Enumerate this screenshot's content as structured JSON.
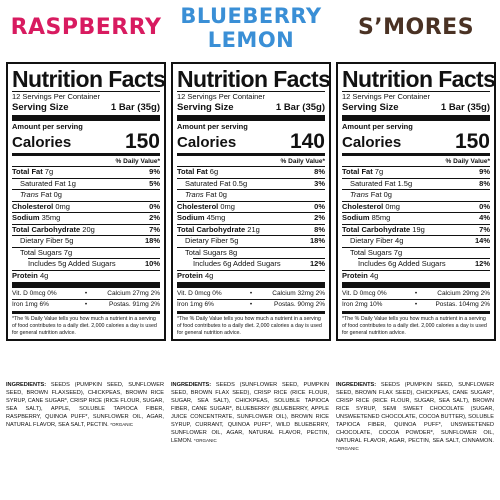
{
  "common": {
    "title": "Nutrition Facts",
    "servings": "12 Servings Per Container",
    "serving_size_label": "Serving Size",
    "serving_size_value": "1 Bar (35g)",
    "amount_per_serving": "Amount per serving",
    "calories_label": "Calories",
    "dv_header": "% Daily Value*",
    "footnote": "*The % Daily Value tells you how much a nutrient in a serving of food contributes to a daily diet. 2,000 calories a day is used for general nutrition advice.",
    "ingredients_label": "INGREDIENTS:"
  },
  "products": [
    {
      "flavor_lines": [
        "RASPBERRY"
      ],
      "color": "#d81b60",
      "calories": "150",
      "total_fat_label": "Total Fat",
      "total_fat": "7g",
      "total_fat_dv": "9%",
      "sat_fat_label": "Saturated Fat",
      "sat_fat": "1g",
      "sat_fat_dv": "5%",
      "trans_fat_label": "Trans",
      "trans_fat_suffix": "Fat 0g",
      "cholesterol_label": "Cholesterol",
      "cholesterol": "0mg",
      "cholesterol_dv": "0%",
      "sodium_label": "Sodium",
      "sodium": "35mg",
      "sodium_dv": "2%",
      "carb_label": "Total Carbohydrate",
      "carb": "20g",
      "carb_dv": "7%",
      "fiber_label": "Dietary Fiber",
      "fiber": "5g",
      "fiber_dv": "18%",
      "sugars": "Total Sugars 7g",
      "added_sugars": "Includes 5g Added Sugars",
      "added_sugars_dv": "10%",
      "protein_label": "Protein",
      "protein": "4g",
      "vit_d": "Vit. D 0mcg  0%",
      "calcium": "Calcium 27mg 2%",
      "iron": "Iron 1mg 6%",
      "potassium": "Postas. 91mg 2%",
      "ingredients": "SEEDS (PUMPKIN SEED, SUNFLOWER SEED, BROWN FLAXSEED), CHICKPEAS, BROWN RICE SYRUP, CANE SUGAR*, CRISP RICE (RICE FLOUR, SUGAR, SEA SALT), APPLE, SOLUBLE TAPIOCA FIBER, RASPBERRY, QUINOA PUFF*, SUNFLOWER OIL, AGAR, NATURAL FLAVOR, SEA SALT, PECTIN.",
      "ingredients_note": "*ORGANIC"
    },
    {
      "flavor_lines": [
        "BLUEBERRY",
        "LEMON"
      ],
      "color": "#3a8fd6",
      "calories": "140",
      "total_fat_label": "Total Fat",
      "total_fat": "6g",
      "total_fat_dv": "8%",
      "sat_fat_label": "Saturated Fat",
      "sat_fat": "0.5g",
      "sat_fat_dv": "3%",
      "trans_fat_label": "Trans",
      "trans_fat_suffix": "Fat 0g",
      "cholesterol_label": "Cholesterol",
      "cholesterol": "0mg",
      "cholesterol_dv": "0%",
      "sodium_label": "Sodium",
      "sodium": "45mg",
      "sodium_dv": "2%",
      "carb_label": "Total Carbohydrate",
      "carb": "21g",
      "carb_dv": "8%",
      "fiber_label": "Dietary Fiber",
      "fiber": "5g",
      "fiber_dv": "18%",
      "sugars": "Total Sugars 8g",
      "added_sugars": "Includes 6g Added Sugars",
      "added_sugars_dv": "12%",
      "protein_label": "Protein",
      "protein": "4g",
      "vit_d": "Vit. D 0mcg  0%",
      "calcium": "Calcium 32mg 2%",
      "iron": "Iron 1mg 6%",
      "potassium": "Postas. 90mg 2%",
      "ingredients": "SEEDS (SUNFLOWER SEED, PUMPKIN SEED, BROWN FLAX SEED), CRISP RICE (RICE FLOUR, SUGAR, SEA SALT), CHICKPEAS, SOLUBLE TAPIOCA FIBER, CANE SUGAR*, BLUEBERRY (BLUEBERRY, APPLE JUICE CONCENTRATE, SUNFLOWER OIL), BROWN RICE SYRUP, CURRANT, QUINOA PUFF*, WILD BLUEBERRY, SUNFLOWER OIL, AGAR, NATURAL FLAVOR, PECTIN, LEMON.",
      "ingredients_note": "*ORGANIC"
    },
    {
      "flavor_lines": [
        "S’MORES"
      ],
      "color": "#4a3224",
      "calories": "150",
      "total_fat_label": "Total Fat",
      "total_fat": "7g",
      "total_fat_dv": "9%",
      "sat_fat_label": "Saturated Fat",
      "sat_fat": "1.5g",
      "sat_fat_dv": "8%",
      "trans_fat_label": "Trans",
      "trans_fat_suffix": "Fat 0g",
      "cholesterol_label": "Cholesterol",
      "cholesterol": "0mg",
      "cholesterol_dv": "0%",
      "sodium_label": "Sodium",
      "sodium": "85mg",
      "sodium_dv": "4%",
      "carb_label": "Total Carbohydrate",
      "carb": "19g",
      "carb_dv": "7%",
      "fiber_label": "Dietary Fiber",
      "fiber": "4g",
      "fiber_dv": "14%",
      "sugars": "Total Sugars 7g",
      "added_sugars": "Includes 6g Added Sugars",
      "added_sugars_dv": "12%",
      "protein_label": "Protein",
      "protein": "4g",
      "vit_d": "Vit. D 0mcg  0%",
      "calcium": "Calcium 29mg 2%",
      "iron": "Iron 2mg 10%",
      "potassium": "Postas. 104mg 2%",
      "ingredients": "SEEDS (PUMPKIN SEED, SUNFLOWER SEED, BROWN FLAX SEED), CHICKPEAS, CANE SUGAR*, CRISP RICE (RICE FLOUR, SUGAR, SEA SALT), BROWN RICE SYRUP, SEMI SWEET CHOCOLATE (SUGAR, UNSWEETENED CHOCOLATE, COCOA BUTTER), SOLUBLE TAPIOCA FIBER, QUINOA PUFF*, UNSWEETENED CHOCOLATE, COCOA POWDER*, SUNFLOWER OIL, NATURAL FLAVOR, AGAR, PECTIN, SEA SALT, CINNAMON.",
      "ingredients_note": "*ORGANIC"
    }
  ]
}
